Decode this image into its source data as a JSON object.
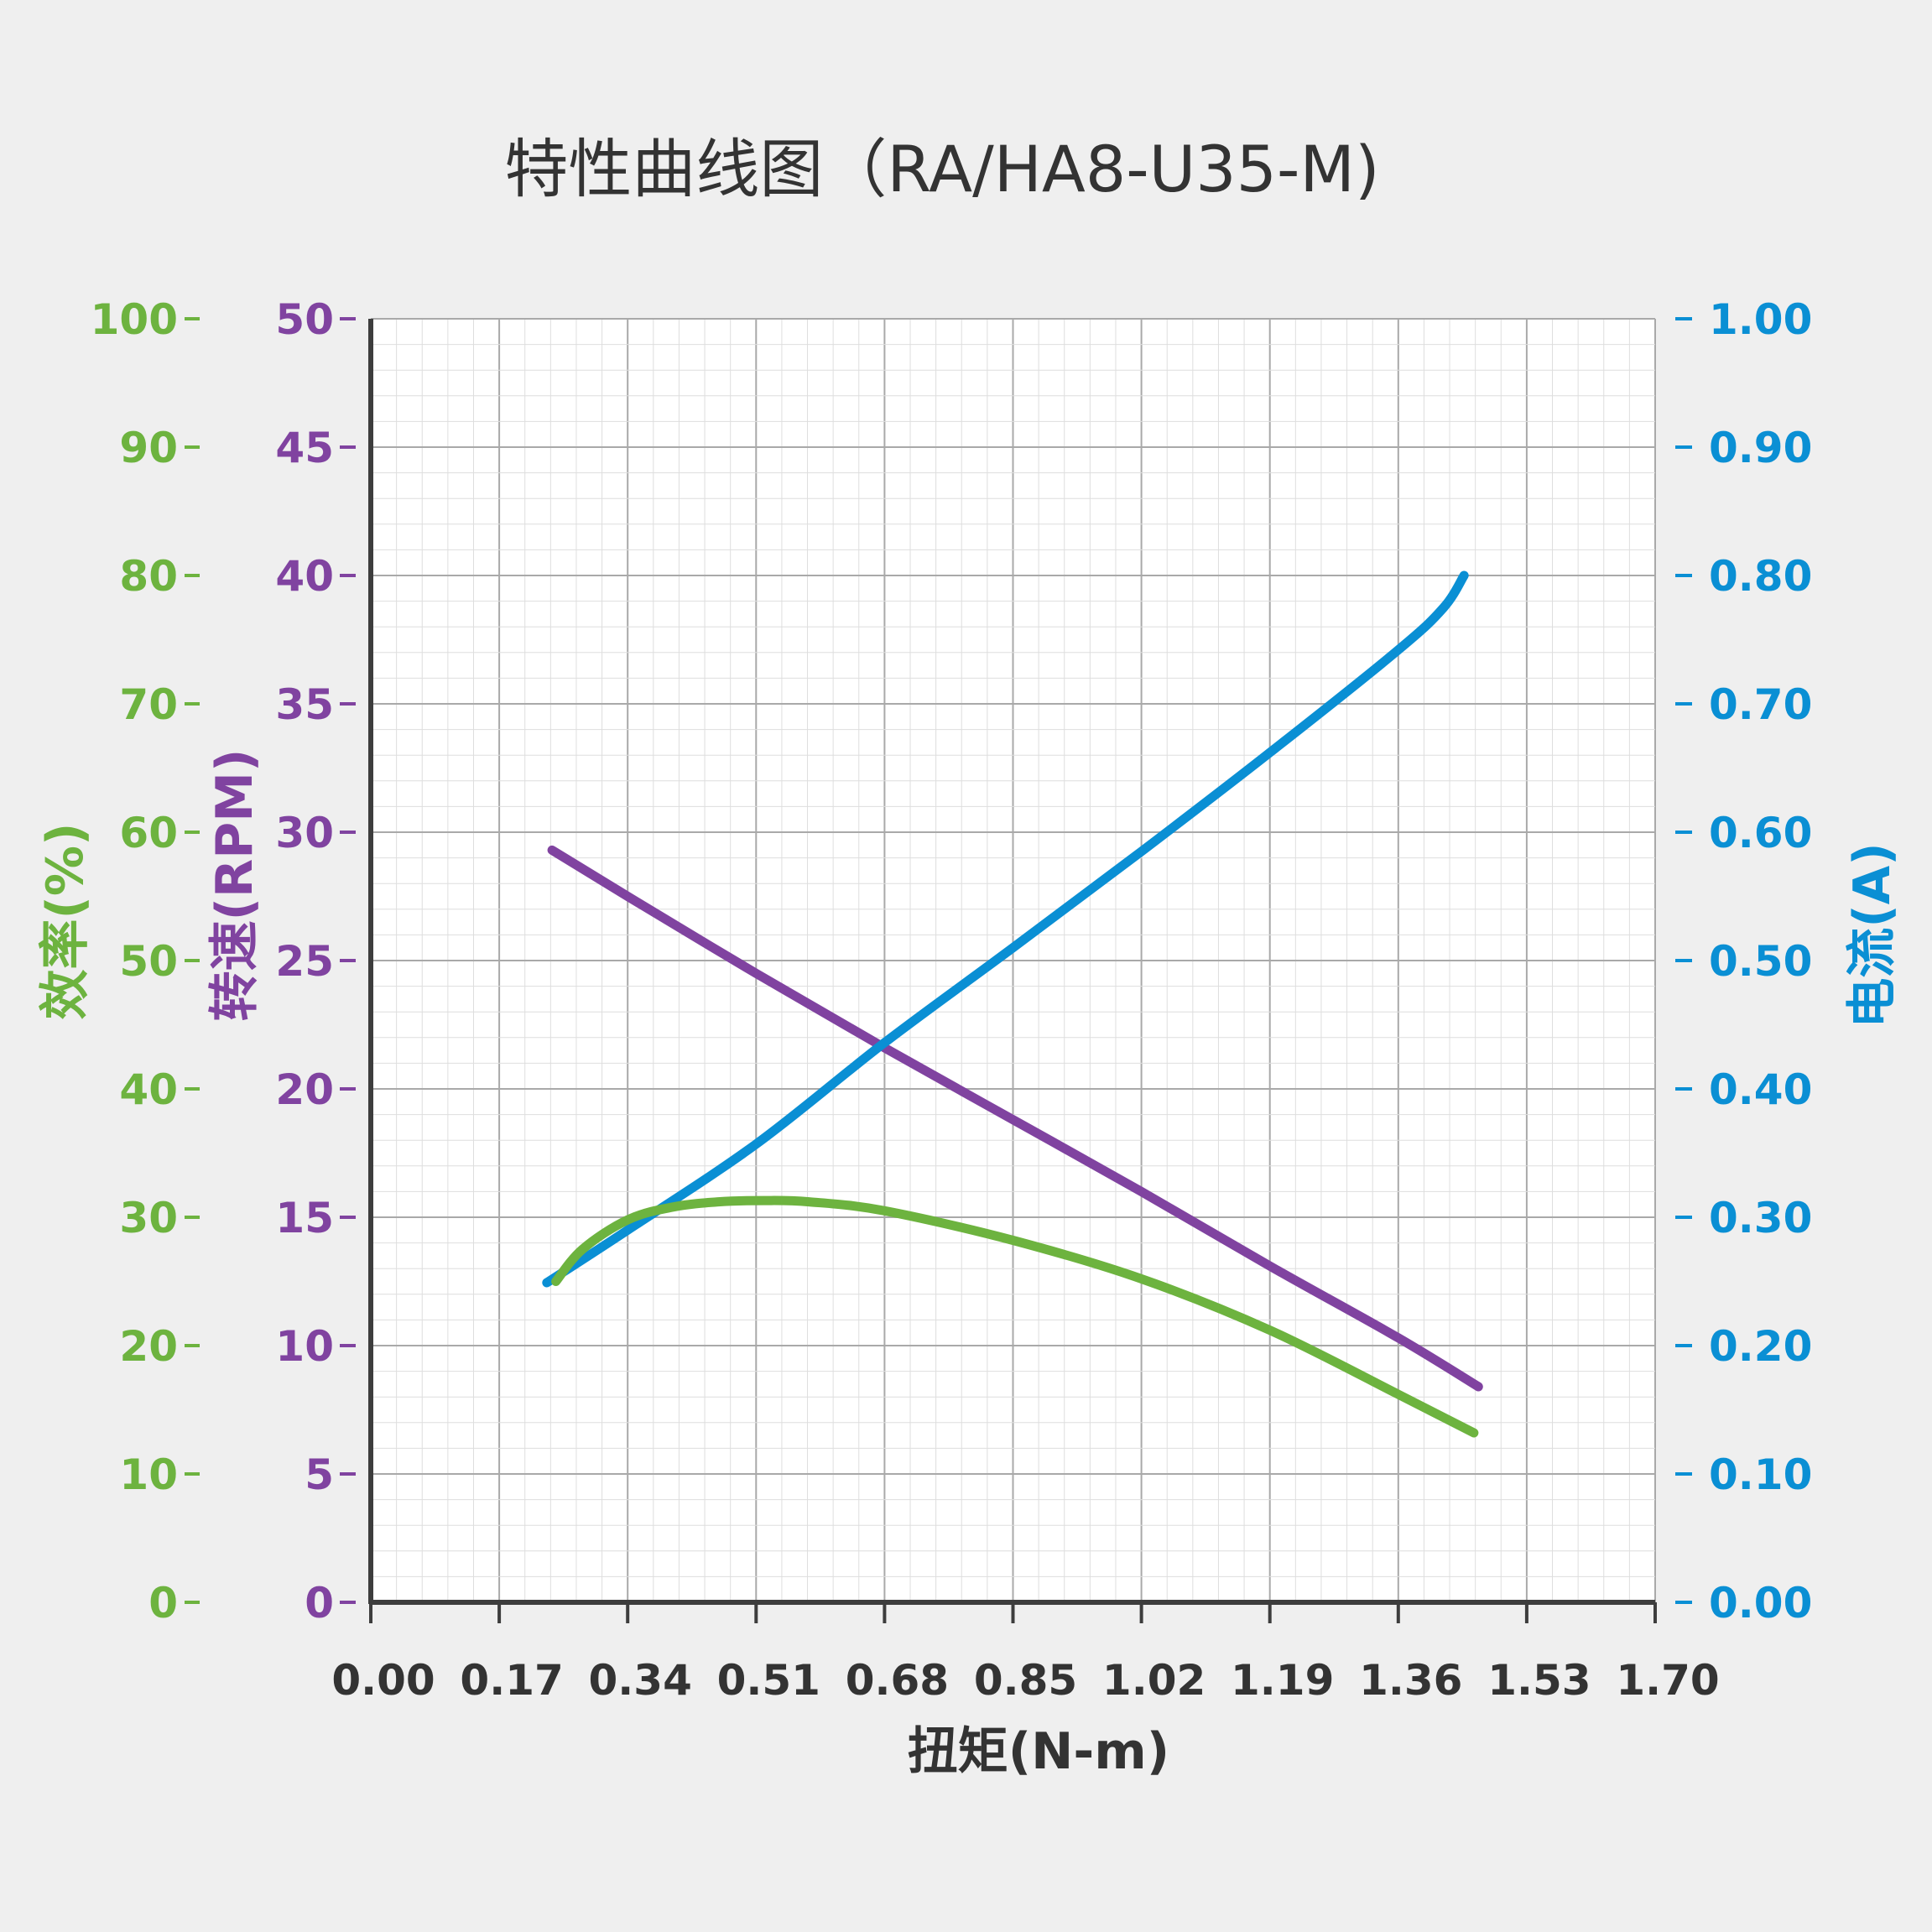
{
  "chart_data": {
    "type": "line",
    "title": "特性曲线图（RA/HA8-U35-M)",
    "xlabel": "扭矩(N-m)",
    "xlim": [
      0,
      1.7
    ],
    "x_ticks": [
      "0.00",
      "0.17",
      "0.34",
      "0.51",
      "0.68",
      "0.85",
      "1.02",
      "1.19",
      "1.36",
      "1.53",
      "1.70"
    ],
    "axes": {
      "efficiency": {
        "label": "效率(%)",
        "ylim": [
          0,
          100
        ],
        "ticks": [
          "0",
          "10",
          "20",
          "30",
          "40",
          "50",
          "60",
          "70",
          "80",
          "90",
          "100"
        ],
        "color": "#6db33f"
      },
      "speed": {
        "label": "转速(RPM)",
        "ylim": [
          0,
          50
        ],
        "ticks": [
          "0",
          "5",
          "10",
          "15",
          "20",
          "25",
          "30",
          "35",
          "40",
          "45",
          "50"
        ],
        "color": "#8043a0"
      },
      "current": {
        "label": "电流(A)",
        "ylim": [
          0,
          1
        ],
        "ticks": [
          "0.00",
          "0.10",
          "0.20",
          "0.30",
          "0.40",
          "0.50",
          "0.60",
          "0.70",
          "0.80",
          "0.90",
          "1.00"
        ],
        "color": "#0a8fd4"
      }
    },
    "series": [
      {
        "axis": "efficiency",
        "color": "#6db33f",
        "x": [
          0.245,
          0.28,
          0.34,
          0.4,
          0.46,
          0.52,
          0.58,
          0.68,
          0.85,
          1.02,
          1.19,
          1.36,
          1.46
        ],
        "y": [
          25,
          27.5,
          29.8,
          30.8,
          31.2,
          31.3,
          31.2,
          30.5,
          28.2,
          25.2,
          21.2,
          16.2,
          13.2
        ]
      },
      {
        "axis": "speed",
        "color": "#8043a0",
        "x": [
          0.24,
          0.34,
          0.51,
          0.68,
          0.85,
          1.02,
          1.19,
          1.36,
          1.466
        ],
        "y": [
          29.3,
          27.5,
          24.5,
          21.6,
          18.8,
          16.0,
          13.1,
          10.3,
          8.4
        ]
      },
      {
        "axis": "current",
        "color": "#0a8fd4",
        "x": [
          0.233,
          0.34,
          0.51,
          0.68,
          0.85,
          1.02,
          1.19,
          1.36,
          1.42,
          1.447
        ],
        "y": [
          0.249,
          0.29,
          0.357,
          0.436,
          0.51,
          0.585,
          0.662,
          0.742,
          0.775,
          0.8
        ]
      }
    ]
  }
}
